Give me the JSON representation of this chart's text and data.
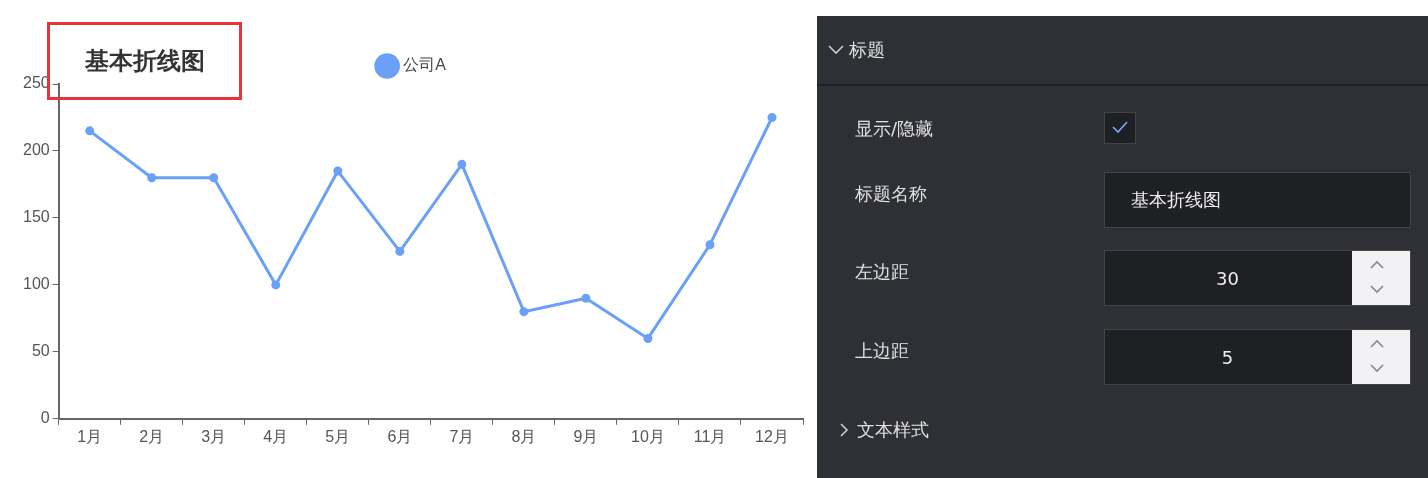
{
  "chart_data": [
    {
      "type": "line",
      "title": "基本折线图",
      "categories": [
        "1月",
        "2月",
        "3月",
        "4月",
        "5月",
        "6月",
        "7月",
        "8月",
        "9月",
        "10月",
        "11月",
        "12月"
      ],
      "series": [
        {
          "name": "公司A",
          "color": "#6aa0f8",
          "values": [
            215,
            180,
            180,
            100,
            185,
            125,
            190,
            80,
            90,
            60,
            130,
            225
          ]
        }
      ],
      "ylim": [
        0,
        250
      ],
      "yticks": [
        0,
        50,
        100,
        150,
        200,
        250
      ],
      "grid": false,
      "legend": "top",
      "marker": "circle",
      "line_style": "solid"
    },
    {
      "type": "other",
      "title": "标题",
      "annotations": [
        "显示/隐藏",
        "标题名称",
        "基本折线图",
        "左边距",
        "30",
        "上边距",
        "5",
        "文本样式"
      ]
    }
  ]
}
